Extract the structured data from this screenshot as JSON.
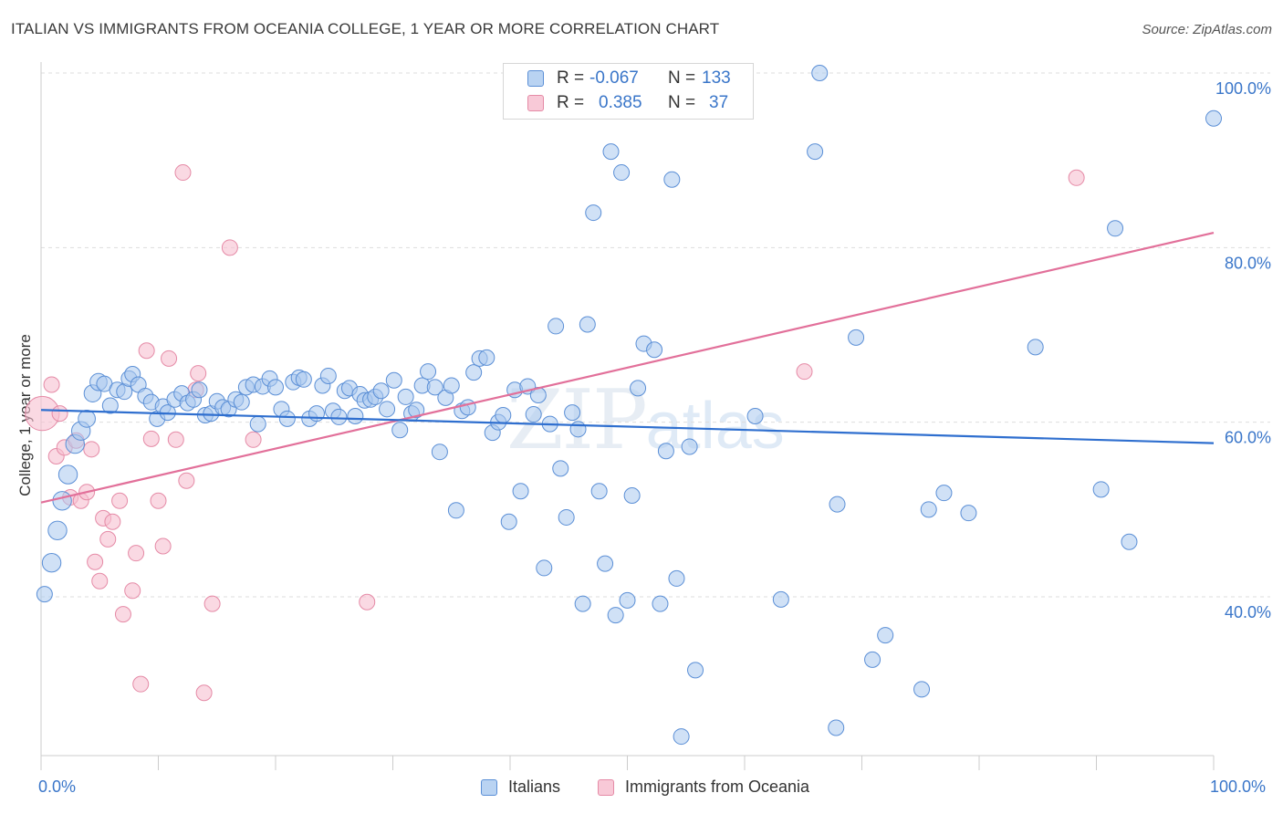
{
  "header": {
    "title": "ITALIAN VS IMMIGRANTS FROM OCEANIA COLLEGE, 1 YEAR OR MORE CORRELATION CHART",
    "source": "Source: ZipAtlas.com"
  },
  "watermark": {
    "zip": "ZIP",
    "atlas": "atlas"
  },
  "legend": {
    "rows": [
      {
        "r_label": "R =",
        "r_value": "-0.067",
        "n_label": "N =",
        "n_value": "133"
      },
      {
        "r_label": "R =",
        "r_value": "0.385",
        "n_label": "N =",
        "n_value": "37"
      }
    ]
  },
  "colors": {
    "blue_fill": "#a9c8ef",
    "blue_stroke": "#5b8fd6",
    "blue_line": "#2f6fcf",
    "pink_fill": "#f6bfd0",
    "pink_stroke": "#e58aa6",
    "pink_line": "#e2709a",
    "axis_text": "#3a76c9",
    "grid": "#dddddd"
  },
  "chart_data": {
    "type": "scatter",
    "title": "ITALIAN VS IMMIGRANTS FROM OCEANIA COLLEGE, 1 YEAR OR MORE CORRELATION CHART",
    "xlabel": "",
    "ylabel": "College, 1 year or more",
    "xlim": [
      0,
      100
    ],
    "ylim": [
      20,
      102
    ],
    "x_tick_labels": [
      "0.0%",
      "100.0%"
    ],
    "y_ticks": [
      {
        "value": 100,
        "label": "100.0%"
      },
      {
        "value": 80,
        "label": "80.0%"
      },
      {
        "value": 60,
        "label": "60.0%"
      },
      {
        "value": 40,
        "label": "40.0%"
      }
    ],
    "grid": "horizontal dashed",
    "legend_position": "bottom-center",
    "series": [
      {
        "name": "Italians",
        "color": "#a9c8ef",
        "trend": {
          "x": [
            0,
            100
          ],
          "y": [
            61.4,
            57.6
          ]
        },
        "points": [
          [
            0.3,
            40.3,
            1
          ],
          [
            0.9,
            43.9,
            1.2
          ],
          [
            1.4,
            47.6,
            1.2
          ],
          [
            1.8,
            51.0,
            1.2
          ],
          [
            2.3,
            54.0,
            1.2
          ],
          [
            2.9,
            57.5,
            1.2
          ],
          [
            3.4,
            59.0,
            1.2
          ],
          [
            3.9,
            60.4,
            1.1
          ],
          [
            4.4,
            63.3,
            1.1
          ],
          [
            4.9,
            64.6,
            1.1
          ],
          [
            5.4,
            64.4,
            1.0
          ],
          [
            5.9,
            61.9,
            1.0
          ],
          [
            6.5,
            63.7,
            1.0
          ],
          [
            7.1,
            63.5,
            1.0
          ],
          [
            7.5,
            65.0,
            1.0
          ],
          [
            7.8,
            65.5,
            1.0
          ],
          [
            8.3,
            64.3,
            1.0
          ],
          [
            8.9,
            63.0,
            1.0
          ],
          [
            9.4,
            62.3,
            1.0
          ],
          [
            9.9,
            60.4,
            1.0
          ],
          [
            10.4,
            61.8,
            1.0
          ],
          [
            10.8,
            61.1,
            1.0
          ],
          [
            11.4,
            62.6,
            1.0
          ],
          [
            12.0,
            63.3,
            1.0
          ],
          [
            12.5,
            62.2,
            1.0
          ],
          [
            13.0,
            62.6,
            1.0
          ],
          [
            13.5,
            63.7,
            1.0
          ],
          [
            14.0,
            60.8,
            1.0
          ],
          [
            14.5,
            61.0,
            1.0
          ],
          [
            15.0,
            62.4,
            1.0
          ],
          [
            15.5,
            61.7,
            1.0
          ],
          [
            16.0,
            61.5,
            1.0
          ],
          [
            16.6,
            62.6,
            1.0
          ],
          [
            17.1,
            62.3,
            1.0
          ],
          [
            17.5,
            64.0,
            1.0
          ],
          [
            18.1,
            64.3,
            1.0
          ],
          [
            18.5,
            59.8,
            1.0
          ],
          [
            18.9,
            64.1,
            1.0
          ],
          [
            19.5,
            65.0,
            1.0
          ],
          [
            20.0,
            64.0,
            1.0
          ],
          [
            20.5,
            61.5,
            1.0
          ],
          [
            21.0,
            60.4,
            1.0
          ],
          [
            21.5,
            64.6,
            1.0
          ],
          [
            22.0,
            65.1,
            1.0
          ],
          [
            22.4,
            64.9,
            1.0
          ],
          [
            22.9,
            60.4,
            1.0
          ],
          [
            23.5,
            61.0,
            1.0
          ],
          [
            24.0,
            64.2,
            1.0
          ],
          [
            24.5,
            65.3,
            1.0
          ],
          [
            24.9,
            61.3,
            1.0
          ],
          [
            25.4,
            60.6,
            1.0
          ],
          [
            25.9,
            63.6,
            1.0
          ],
          [
            26.3,
            63.9,
            1.0
          ],
          [
            26.8,
            60.7,
            1.0
          ],
          [
            27.2,
            63.2,
            1.0
          ],
          [
            27.6,
            62.5,
            1.0
          ],
          [
            28.1,
            62.6,
            1.0
          ],
          [
            28.5,
            62.9,
            1.0
          ],
          [
            29.0,
            63.6,
            1.0
          ],
          [
            29.5,
            61.5,
            1.0
          ],
          [
            30.1,
            64.8,
            1.0
          ],
          [
            30.6,
            59.1,
            1.0
          ],
          [
            31.1,
            62.9,
            1.0
          ],
          [
            31.6,
            61.0,
            1.0
          ],
          [
            32.0,
            61.4,
            1.0
          ],
          [
            32.5,
            64.2,
            1.0
          ],
          [
            33.0,
            65.8,
            1.0
          ],
          [
            33.6,
            64.0,
            1.0
          ],
          [
            34.0,
            56.6,
            1.0
          ],
          [
            34.5,
            62.8,
            1.0
          ],
          [
            35.0,
            64.2,
            1.0
          ],
          [
            35.4,
            49.9,
            1.0
          ],
          [
            35.9,
            61.3,
            1.0
          ],
          [
            36.4,
            61.7,
            1.0
          ],
          [
            36.9,
            65.7,
            1.0
          ],
          [
            37.4,
            67.3,
            1.0
          ],
          [
            38.0,
            67.4,
            1.0
          ],
          [
            38.5,
            58.8,
            1.0
          ],
          [
            39.0,
            60.0,
            1.0
          ],
          [
            39.4,
            60.8,
            1.0
          ],
          [
            39.9,
            48.6,
            1.0
          ],
          [
            40.4,
            63.7,
            1.0
          ],
          [
            40.9,
            52.1,
            1.0
          ],
          [
            41.5,
            64.1,
            1.0
          ],
          [
            42.0,
            60.9,
            1.0
          ],
          [
            42.4,
            63.1,
            1.0
          ],
          [
            42.9,
            43.3,
            1.0
          ],
          [
            43.4,
            59.8,
            1.0
          ],
          [
            43.9,
            71.0,
            1.0
          ],
          [
            44.3,
            54.7,
            1.0
          ],
          [
            44.8,
            49.1,
            1.0
          ],
          [
            45.3,
            61.1,
            1.0
          ],
          [
            45.8,
            59.2,
            1.0
          ],
          [
            46.2,
            39.2,
            1.0
          ],
          [
            46.6,
            71.2,
            1.0
          ],
          [
            47.1,
            84.0,
            1.0
          ],
          [
            47.6,
            52.1,
            1.0
          ],
          [
            48.1,
            43.8,
            1.0
          ],
          [
            48.6,
            91.0,
            1.0
          ],
          [
            49.0,
            37.9,
            1.0
          ],
          [
            49.5,
            88.6,
            1.0
          ],
          [
            50.0,
            39.6,
            1.0
          ],
          [
            50.4,
            51.6,
            1.0
          ],
          [
            50.9,
            63.9,
            1.0
          ],
          [
            51.4,
            69.0,
            1.0
          ],
          [
            51.9,
            97.3,
            1.0
          ],
          [
            52.3,
            68.3,
            1.0
          ],
          [
            52.8,
            39.2,
            1.0
          ],
          [
            53.3,
            56.7,
            1.0
          ],
          [
            53.8,
            87.8,
            1.0
          ],
          [
            54.2,
            42.1,
            1.0
          ],
          [
            54.6,
            24.0,
            1.0
          ],
          [
            55.3,
            57.2,
            1.0
          ],
          [
            55.8,
            31.6,
            1.0
          ],
          [
            60.9,
            60.7,
            1.0
          ],
          [
            63.1,
            39.7,
            1.0
          ],
          [
            66.0,
            91.0,
            1.0
          ],
          [
            66.4,
            100.0,
            1.0
          ],
          [
            67.8,
            25.0,
            1.0
          ],
          [
            67.9,
            50.6,
            1.0
          ],
          [
            69.5,
            69.7,
            1.0
          ],
          [
            70.9,
            32.8,
            1.0
          ],
          [
            72.0,
            35.6,
            1.0
          ],
          [
            75.1,
            29.4,
            1.0
          ],
          [
            75.7,
            50.0,
            1.0
          ],
          [
            77.0,
            51.9,
            1.0
          ],
          [
            79.1,
            49.6,
            1.0
          ],
          [
            84.8,
            68.6,
            1.0
          ],
          [
            90.4,
            52.3,
            1.0
          ],
          [
            91.6,
            82.2,
            1.0
          ],
          [
            92.8,
            46.3,
            1.0
          ],
          [
            100.0,
            94.8,
            1.0
          ]
        ]
      },
      {
        "name": "Immigrants from Oceania",
        "color": "#f6bfd0",
        "trend": {
          "x": [
            0,
            100
          ],
          "y": [
            50.8,
            81.7
          ]
        },
        "points": [
          [
            0.1,
            61.0,
            2.2
          ],
          [
            0.9,
            64.3,
            1
          ],
          [
            1.3,
            56.1,
            1
          ],
          [
            1.6,
            61.0,
            1
          ],
          [
            2.0,
            57.1,
            1
          ],
          [
            2.5,
            51.4,
            1
          ],
          [
            3.0,
            57.9,
            1
          ],
          [
            3.4,
            51.0,
            1
          ],
          [
            3.9,
            52.0,
            1
          ],
          [
            4.3,
            56.9,
            1
          ],
          [
            4.6,
            44.0,
            1
          ],
          [
            5.0,
            41.8,
            1
          ],
          [
            5.3,
            49.0,
            1
          ],
          [
            5.7,
            46.6,
            1
          ],
          [
            6.1,
            48.6,
            1
          ],
          [
            6.7,
            51.0,
            1
          ],
          [
            7.0,
            38.0,
            1
          ],
          [
            7.8,
            40.7,
            1
          ],
          [
            8.1,
            45.0,
            1
          ],
          [
            8.5,
            30.0,
            1
          ],
          [
            9.0,
            68.2,
            1
          ],
          [
            9.4,
            58.1,
            1
          ],
          [
            10.0,
            51.0,
            1
          ],
          [
            10.4,
            45.8,
            1
          ],
          [
            10.9,
            67.3,
            1
          ],
          [
            11.5,
            58.0,
            1
          ],
          [
            12.1,
            88.6,
            1
          ],
          [
            12.4,
            53.3,
            1
          ],
          [
            13.2,
            63.7,
            1
          ],
          [
            13.4,
            65.6,
            1
          ],
          [
            13.9,
            29.0,
            1
          ],
          [
            14.6,
            39.2,
            1
          ],
          [
            16.1,
            80.0,
            1
          ],
          [
            18.1,
            58.0,
            1
          ],
          [
            27.8,
            39.4,
            1
          ],
          [
            65.1,
            65.8,
            1
          ],
          [
            88.3,
            88.0,
            1
          ]
        ]
      }
    ]
  },
  "bottom_legend": {
    "series1": "Italians",
    "series2": "Immigrants from Oceania"
  }
}
